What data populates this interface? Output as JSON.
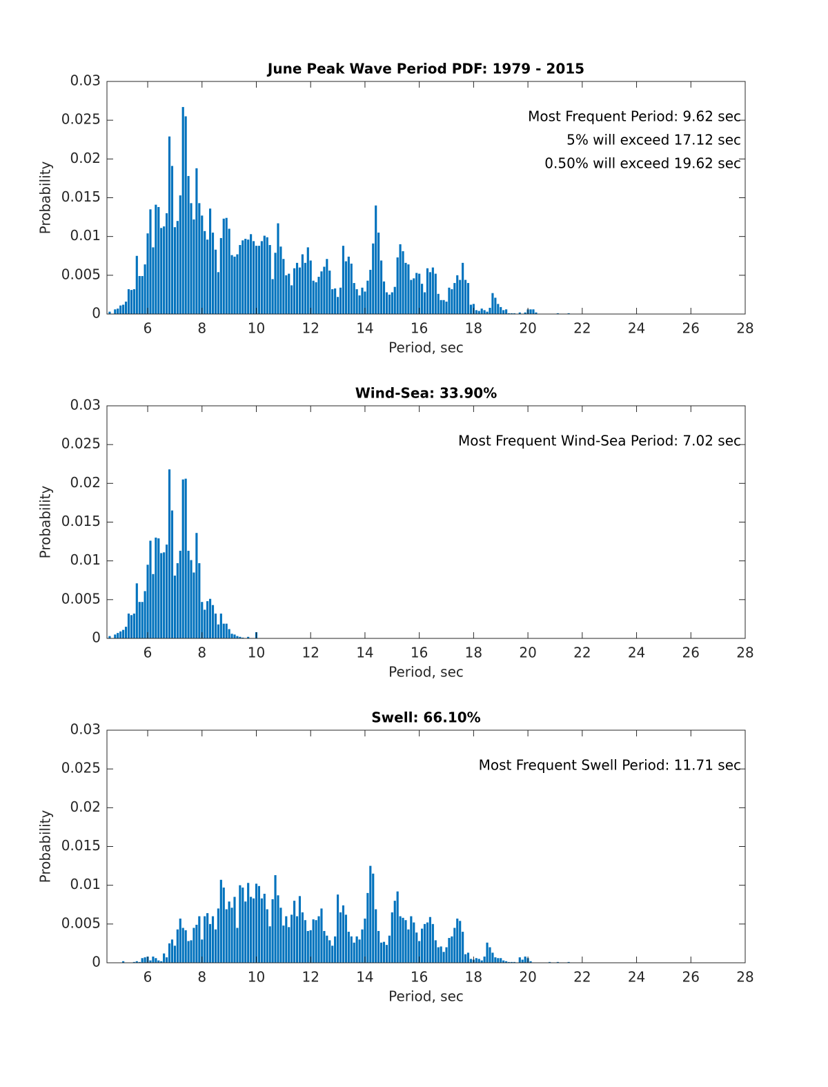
{
  "chart_data": [
    {
      "type": "bar",
      "title": "June Peak Wave Period PDF: 1979 - 2015",
      "xlabel": "Period, sec",
      "ylabel": "Probability",
      "annotations": [
        "Most Frequent Period: 9.62 sec",
        "5% will exceed 17.12 sec",
        "0.50% will exceed 19.62 sec"
      ],
      "color": "#0072bd",
      "xlim": [
        4.5,
        28
      ],
      "ylim": [
        0,
        0.03
      ],
      "xticks": [
        6,
        8,
        10,
        12,
        14,
        16,
        18,
        20,
        22,
        24,
        26,
        28
      ],
      "yticks": [
        0,
        0.005,
        0.01,
        0.015,
        0.02,
        0.025,
        0.03
      ],
      "x": [
        4.6,
        4.7,
        4.8,
        4.9,
        5.0,
        5.1,
        5.2,
        5.3,
        5.4,
        5.5,
        5.6,
        5.7,
        5.8,
        5.9,
        6.0,
        6.1,
        6.2,
        6.3,
        6.4,
        6.5,
        6.6,
        6.7,
        6.8,
        6.9,
        7.0,
        7.1,
        7.2,
        7.3,
        7.4,
        7.5,
        7.6,
        7.7,
        7.8,
        7.9,
        8.0,
        8.1,
        8.2,
        8.3,
        8.4,
        8.5,
        8.6,
        8.7,
        8.8,
        8.9,
        9.0,
        9.1,
        9.2,
        9.3,
        9.4,
        9.5,
        9.6,
        9.7,
        9.8,
        9.9,
        10.0,
        10.1,
        10.2,
        10.3,
        10.4,
        10.5,
        10.6,
        10.7,
        10.8,
        10.9,
        11.0,
        11.1,
        11.2,
        11.3,
        11.4,
        11.5,
        11.6,
        11.7,
        11.8,
        11.9,
        12.0,
        12.1,
        12.2,
        12.3,
        12.4,
        12.5,
        12.6,
        12.7,
        12.8,
        12.9,
        13.0,
        13.1,
        13.2,
        13.3,
        13.4,
        13.5,
        13.6,
        13.7,
        13.8,
        13.9,
        14.0,
        14.1,
        14.2,
        14.3,
        14.4,
        14.5,
        14.6,
        14.7,
        14.8,
        14.9,
        15.0,
        15.1,
        15.2,
        15.3,
        15.4,
        15.5,
        15.6,
        15.7,
        15.8,
        15.9,
        16.0,
        16.1,
        16.2,
        16.3,
        16.4,
        16.5,
        16.6,
        16.7,
        16.8,
        16.9,
        17.0,
        17.1,
        17.2,
        17.3,
        17.4,
        17.5,
        17.6,
        17.7,
        17.8,
        17.9,
        18.0,
        18.1,
        18.2,
        18.3,
        18.4,
        18.5,
        18.6,
        18.7,
        18.8,
        18.9,
        19.0,
        19.1,
        19.2,
        19.3,
        19.4,
        19.5,
        19.6,
        19.7,
        19.8,
        19.9,
        20.0,
        20.1,
        20.2,
        20.3,
        20.4,
        20.5,
        20.6,
        20.7,
        20.8,
        20.9,
        21.0,
        21.1,
        21.2,
        21.3,
        21.4,
        21.5
      ],
      "values": [
        0.0003,
        0,
        0.0006,
        0.0007,
        0.0011,
        0.0012,
        0.0016,
        0.0032,
        0.0031,
        0.0032,
        0.0075,
        0.0049,
        0.0049,
        0.0064,
        0.0104,
        0.0135,
        0.0086,
        0.0141,
        0.0138,
        0.0111,
        0.0113,
        0.013,
        0.0229,
        0.0191,
        0.0112,
        0.012,
        0.0153,
        0.0267,
        0.0255,
        0.0178,
        0.0143,
        0.0122,
        0.0188,
        0.0143,
        0.0127,
        0.0107,
        0.0096,
        0.0136,
        0.0105,
        0.0083,
        0.0054,
        0.0098,
        0.0123,
        0.0124,
        0.011,
        0.0076,
        0.0074,
        0.0077,
        0.0089,
        0.0095,
        0.0097,
        0.0096,
        0.0103,
        0.0094,
        0.0088,
        0.0088,
        0.0094,
        0.0101,
        0.0099,
        0.0089,
        0.0045,
        0.0079,
        0.0117,
        0.0087,
        0.0071,
        0.005,
        0.0052,
        0.0037,
        0.0059,
        0.0066,
        0.006,
        0.0077,
        0.0066,
        0.0086,
        0.0069,
        0.0043,
        0.0041,
        0.0048,
        0.0055,
        0.0061,
        0.0071,
        0.0056,
        0.0032,
        0.0033,
        0.0022,
        0.0034,
        0.0088,
        0.0068,
        0.0074,
        0.0065,
        0.004,
        0.0032,
        0.0024,
        0.0034,
        0.0029,
        0.0043,
        0.0057,
        0.0091,
        0.014,
        0.0105,
        0.0069,
        0.0042,
        0.0028,
        0.0025,
        0.0028,
        0.0035,
        0.0073,
        0.009,
        0.0081,
        0.0066,
        0.0064,
        0.0044,
        0.0046,
        0.0053,
        0.0052,
        0.0039,
        0.0028,
        0.0059,
        0.0054,
        0.006,
        0.0052,
        0.0026,
        0.0018,
        0.0018,
        0.0016,
        0.0034,
        0.0032,
        0.004,
        0.005,
        0.0044,
        0.0066,
        0.0044,
        0.004,
        0.0012,
        0.0013,
        0.0005,
        0.0004,
        0.0007,
        0.0005,
        0.0003,
        0.0008,
        0.0027,
        0.0021,
        0.0013,
        0.0009,
        0.0005,
        0.0006,
        0.0001,
        0.0001,
        0.0001,
        0,
        0.0002,
        0,
        0.0002,
        0.0006,
        0.0006,
        0.0006,
        0.0002,
        0,
        0,
        0,
        0,
        0,
        0,
        0,
        0.0001,
        0,
        0,
        0,
        0.0001
      ]
    },
    {
      "type": "bar",
      "title": "Wind-Sea: 33.90%",
      "xlabel": "Period, sec",
      "ylabel": "Probability",
      "annotations": [
        "Most Frequent Wind-Sea Period: 7.02 sec"
      ],
      "color": "#0072bd",
      "xlim": [
        4.5,
        28
      ],
      "ylim": [
        0,
        0.03
      ],
      "xticks": [
        6,
        8,
        10,
        12,
        14,
        16,
        18,
        20,
        22,
        24,
        26,
        28
      ],
      "yticks": [
        0,
        0.005,
        0.01,
        0.015,
        0.02,
        0.025,
        0.03
      ],
      "x": [
        4.6,
        4.7,
        4.8,
        4.9,
        5.0,
        5.1,
        5.2,
        5.3,
        5.4,
        5.5,
        5.6,
        5.7,
        5.8,
        5.9,
        6.0,
        6.1,
        6.2,
        6.3,
        6.4,
        6.5,
        6.6,
        6.7,
        6.8,
        6.9,
        7.0,
        7.1,
        7.2,
        7.3,
        7.4,
        7.5,
        7.6,
        7.7,
        7.8,
        7.9,
        8.0,
        8.1,
        8.2,
        8.3,
        8.4,
        8.5,
        8.6,
        8.7,
        8.8,
        8.9,
        9.0,
        9.1,
        9.2,
        9.3,
        9.4,
        9.5,
        9.6,
        9.7,
        9.8,
        9.9,
        10.0
      ],
      "values": [
        0.0003,
        0,
        0.0005,
        0.0007,
        0.0009,
        0.0011,
        0.0015,
        0.0032,
        0.003,
        0.0032,
        0.0071,
        0.0047,
        0.0047,
        0.0061,
        0.0095,
        0.0126,
        0.0083,
        0.013,
        0.0129,
        0.011,
        0.0111,
        0.0121,
        0.0218,
        0.0165,
        0.0081,
        0.0097,
        0.0113,
        0.0205,
        0.0206,
        0.0113,
        0.0101,
        0.0085,
        0.0136,
        0.0097,
        0.0047,
        0.0037,
        0.0048,
        0.0051,
        0.0043,
        0.0032,
        0.0018,
        0.0032,
        0.0019,
        0.0019,
        0.0012,
        0.0006,
        0.0005,
        0.0003,
        0.0002,
        0.0001,
        0,
        0.0002,
        0,
        0,
        0.0008
      ]
    },
    {
      "type": "bar",
      "title": "Swell: 66.10%",
      "xlabel": "Period, sec",
      "ylabel": "Probability",
      "annotations": [
        "Most Frequent Swell Period: 11.71 sec"
      ],
      "color": "#0072bd",
      "xlim": [
        4.5,
        28
      ],
      "ylim": [
        0,
        0.03
      ],
      "xticks": [
        6,
        8,
        10,
        12,
        14,
        16,
        18,
        20,
        22,
        24,
        26,
        28
      ],
      "yticks": [
        0,
        0.005,
        0.01,
        0.015,
        0.02,
        0.025,
        0.03
      ],
      "x": [
        4.6,
        4.7,
        4.8,
        4.9,
        5.0,
        5.1,
        5.2,
        5.3,
        5.4,
        5.5,
        5.6,
        5.7,
        5.8,
        5.9,
        6.0,
        6.1,
        6.2,
        6.3,
        6.4,
        6.5,
        6.6,
        6.7,
        6.8,
        6.9,
        7.0,
        7.1,
        7.2,
        7.3,
        7.4,
        7.5,
        7.6,
        7.7,
        7.8,
        7.9,
        8.0,
        8.1,
        8.2,
        8.3,
        8.4,
        8.5,
        8.6,
        8.7,
        8.8,
        8.9,
        9.0,
        9.1,
        9.2,
        9.3,
        9.4,
        9.5,
        9.6,
        9.7,
        9.8,
        9.9,
        10.0,
        10.1,
        10.2,
        10.3,
        10.4,
        10.5,
        10.6,
        10.7,
        10.8,
        10.9,
        11.0,
        11.1,
        11.2,
        11.3,
        11.4,
        11.5,
        11.6,
        11.7,
        11.8,
        11.9,
        12.0,
        12.1,
        12.2,
        12.3,
        12.4,
        12.5,
        12.6,
        12.7,
        12.8,
        12.9,
        13.0,
        13.1,
        13.2,
        13.3,
        13.4,
        13.5,
        13.6,
        13.7,
        13.8,
        13.9,
        14.0,
        14.1,
        14.2,
        14.3,
        14.4,
        14.5,
        14.6,
        14.7,
        14.8,
        14.9,
        15.0,
        15.1,
        15.2,
        15.3,
        15.4,
        15.5,
        15.6,
        15.7,
        15.8,
        15.9,
        16.0,
        16.1,
        16.2,
        16.3,
        16.4,
        16.5,
        16.6,
        16.7,
        16.8,
        16.9,
        17.0,
        17.1,
        17.2,
        17.3,
        17.4,
        17.5,
        17.6,
        17.7,
        17.8,
        17.9,
        18.0,
        18.1,
        18.2,
        18.3,
        18.4,
        18.5,
        18.6,
        18.7,
        18.8,
        18.9,
        19.0,
        19.1,
        19.2,
        19.3,
        19.4,
        19.5,
        19.6,
        19.7,
        19.8,
        19.9,
        20.0,
        20.1,
        20.2,
        20.3,
        20.4,
        20.5,
        20.6,
        20.7,
        20.8,
        20.9,
        21.0,
        21.1,
        21.2,
        21.3,
        21.4,
        21.5
      ],
      "values": [
        0,
        0,
        0,
        0,
        0,
        0.0002,
        0,
        0,
        0,
        0.0001,
        0.0002,
        0.0001,
        0.0006,
        0.0007,
        0.0008,
        0.0003,
        0.0008,
        0.0006,
        0.0003,
        0.0002,
        0.0012,
        0.0007,
        0.0025,
        0.003,
        0.0022,
        0.0043,
        0.0057,
        0.0045,
        0.0042,
        0.0028,
        0.0029,
        0.0045,
        0.0049,
        0.006,
        0.003,
        0.006,
        0.0064,
        0.005,
        0.006,
        0.0043,
        0.007,
        0.0107,
        0.0097,
        0.0069,
        0.0079,
        0.0071,
        0.0085,
        0.0045,
        0.01,
        0.0097,
        0.0079,
        0.0103,
        0.0085,
        0.0083,
        0.0102,
        0.0099,
        0.0083,
        0.0089,
        0.0069,
        0.0047,
        0.0082,
        0.0113,
        0.0087,
        0.0071,
        0.0048,
        0.006,
        0.0046,
        0.0062,
        0.008,
        0.006,
        0.0086,
        0.0065,
        0.0055,
        0.0041,
        0.0042,
        0.0056,
        0.0055,
        0.006,
        0.007,
        0.0041,
        0.0035,
        0.0029,
        0.0022,
        0.0034,
        0.0088,
        0.0065,
        0.0074,
        0.0062,
        0.004,
        0.0034,
        0.0026,
        0.0034,
        0.003,
        0.0043,
        0.0057,
        0.009,
        0.0125,
        0.0115,
        0.0069,
        0.0041,
        0.0026,
        0.0027,
        0.0023,
        0.0035,
        0.0065,
        0.008,
        0.0092,
        0.006,
        0.0058,
        0.0055,
        0.0043,
        0.006,
        0.0052,
        0.0039,
        0.0028,
        0.0044,
        0.005,
        0.0052,
        0.0059,
        0.005,
        0.0029,
        0.002,
        0.0021,
        0.0014,
        0.002,
        0.0032,
        0.0034,
        0.0045,
        0.0057,
        0.0054,
        0.004,
        0.0011,
        0.0013,
        0.0005,
        0.0004,
        0.0006,
        0.0005,
        0.0003,
        0.0008,
        0.0026,
        0.002,
        0.0013,
        0.0007,
        0.0006,
        0.0006,
        0.0003,
        0.0002,
        0.0001,
        0.0001,
        0.0001,
        0,
        0.0007,
        0.0004,
        0.0008,
        0.0006,
        0.0002,
        0,
        0,
        0,
        0,
        0,
        0,
        0.0001,
        0,
        0,
        0.0001,
        0,
        0,
        0,
        0.0001
      ]
    }
  ]
}
